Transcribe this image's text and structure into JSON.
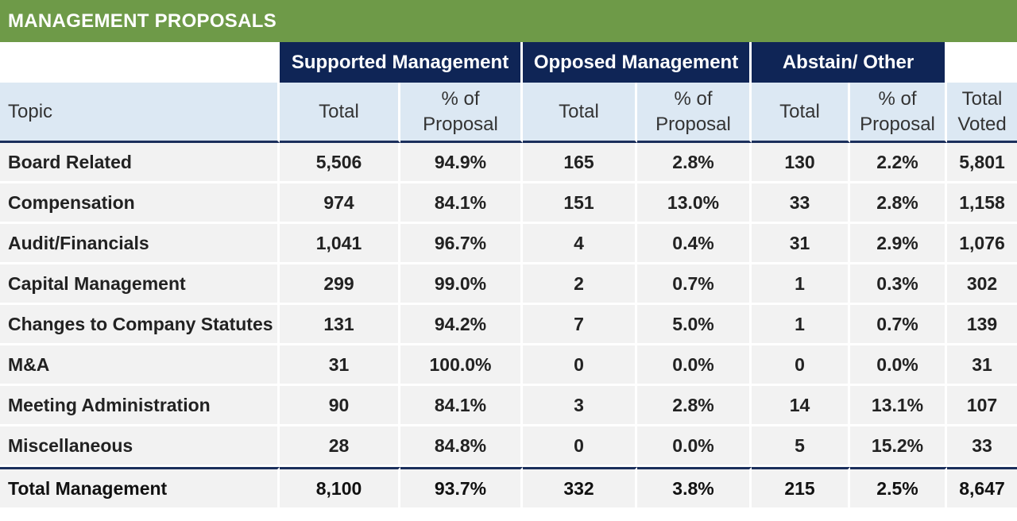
{
  "title": "MANAGEMENT PROPOSALS",
  "group_headers": [
    "Supported Management",
    "Opposed Management",
    "Abstain/ Other"
  ],
  "column_headers": {
    "topic": "Topic",
    "total1": "Total",
    "pct1_a": "% of",
    "pct1_b": "Proposal",
    "total2": "Total",
    "pct2_a": "% of",
    "pct2_b": "Proposal",
    "total3": "Total",
    "pct3_a": "% of",
    "pct3_b": "Proposal",
    "voted_a": "Total",
    "voted_b": "Voted"
  },
  "chart_data": {
    "type": "table",
    "title": "MANAGEMENT PROPOSALS",
    "columns": [
      "Topic",
      "Supported Management Total",
      "Supported Management % of Proposal",
      "Opposed Management Total",
      "Opposed Management % of Proposal",
      "Abstain/ Other Total",
      "Abstain/ Other % of Proposal",
      "Total Voted"
    ],
    "rows": [
      [
        "Board Related",
        "5,506",
        "94.9%",
        "165",
        "2.8%",
        "130",
        "2.2%",
        "5,801"
      ],
      [
        "Compensation",
        "974",
        "84.1%",
        "151",
        "13.0%",
        "33",
        "2.8%",
        "1,158"
      ],
      [
        "Audit/Financials",
        "1,041",
        "96.7%",
        "4",
        "0.4%",
        "31",
        "2.9%",
        "1,076"
      ],
      [
        "Capital Management",
        "299",
        "99.0%",
        "2",
        "0.7%",
        "1",
        "0.3%",
        "302"
      ],
      [
        "Changes to Company Statutes",
        "131",
        "94.2%",
        "7",
        "5.0%",
        "1",
        "0.7%",
        "139"
      ],
      [
        "M&A",
        "31",
        "100.0%",
        "0",
        "0.0%",
        "0",
        "0.0%",
        "31"
      ],
      [
        "Meeting Administration",
        "90",
        "84.1%",
        "3",
        "2.8%",
        "14",
        "13.1%",
        "107"
      ],
      [
        "Miscellaneous",
        "28",
        "84.8%",
        "0",
        "0.0%",
        "5",
        "15.2%",
        "33"
      ]
    ],
    "total_row": [
      "Total Management",
      "8,100",
      "93.7%",
      "332",
      "3.8%",
      "215",
      "2.5%",
      "8,647"
    ]
  },
  "colors": {
    "title_bar": "#6e9a48",
    "group_header": "#0f2556",
    "column_header_bg": "#dce8f3",
    "row_bg": "#f2f2f2",
    "rule": "#1b2f5c"
  }
}
